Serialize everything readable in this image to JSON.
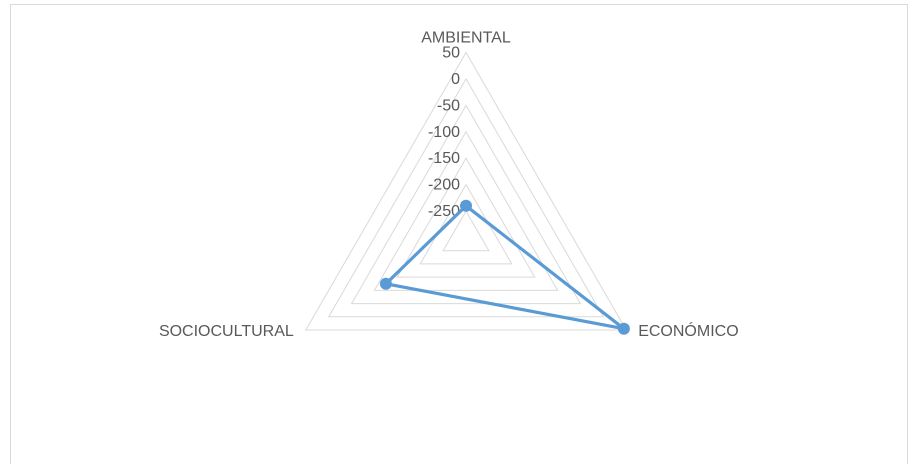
{
  "chart_data": {
    "type": "radar",
    "categories": [
      "AMBIENTAL",
      "ECONÓMICO",
      "SOCIOCULTURAL"
    ],
    "tick_labels": [
      "50",
      "0",
      "-50",
      "-100",
      "-150",
      "-200",
      "-250"
    ],
    "range": [
      -300,
      50
    ],
    "gridlines": [
      -250,
      -200,
      -150,
      -100,
      -50,
      0,
      50
    ],
    "series": [
      {
        "values": [
          -240,
          45,
          -125
        ],
        "color": "#5b9bd5"
      }
    ],
    "grid": true,
    "gridColor": "#d9d9d9"
  }
}
